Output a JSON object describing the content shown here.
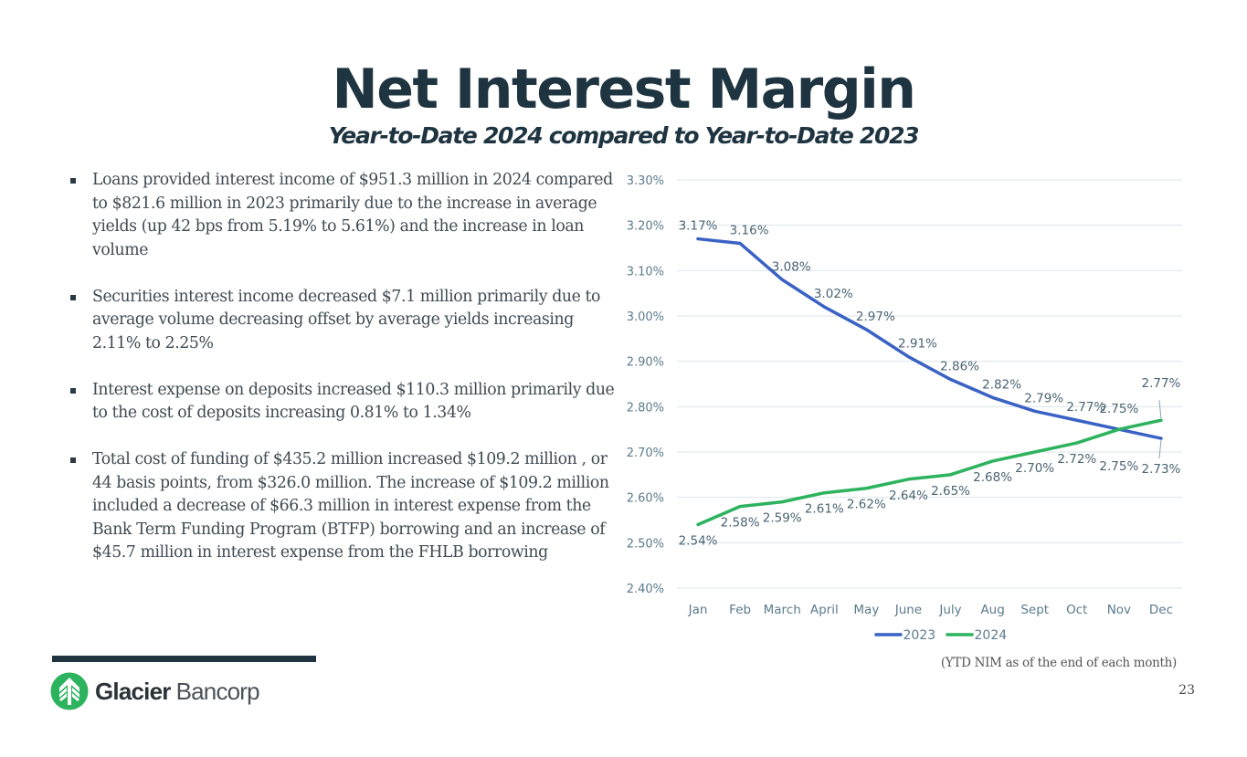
{
  "header": {
    "title": "Net Interest Margin",
    "subtitle": "Year-to-Date 2024 compared to Year-to-Date 2023"
  },
  "bullets": [
    "Loans provided interest income of $951.3 million in 2024 compared to $821.6 million in 2023 primarily due to the increase in average yields (up 42 bps from 5.19% to 5.61%) and the  increase in loan volume",
    "Securities interest income decreased $7.1 million primarily due to average volume decreasing offset by average yields increasing 2.11% to 2.25%",
    "Interest expense on deposits increased $110.3 million primarily due to the cost of deposits increasing 0.81% to 1.34%",
    "Total cost of funding of $435.2 million increased $109.2 million , or 44 basis points, from $326.0 million. The increase of $109.2 million included a decrease of $66.3 million in interest expense from the Bank Term Funding Program (BTFP) borrowing and an increase of $45.7 million in interest expense from the FHLB borrowing"
  ],
  "chart_data": {
    "type": "line",
    "title": "",
    "xlabel": "",
    "ylabel": "",
    "categories": [
      "Jan",
      "Feb",
      "March",
      "April",
      "May",
      "June",
      "July",
      "Aug",
      "Sept",
      "Oct",
      "Nov",
      "Dec"
    ],
    "series": [
      {
        "name": "2023",
        "color": "#3a62c4",
        "values": [
          3.17,
          3.16,
          3.08,
          3.02,
          2.97,
          2.91,
          2.86,
          2.82,
          2.79,
          2.77,
          2.75,
          2.73
        ],
        "labels": [
          "3.17%",
          "3.16%",
          "3.08%",
          "3.02%",
          "2.97%",
          "2.91%",
          "2.86%",
          "2.82%",
          "2.79%",
          "2.77%",
          "2.75%",
          "2.73%"
        ]
      },
      {
        "name": "2024",
        "color": "#2db35e",
        "values": [
          2.54,
          2.58,
          2.59,
          2.61,
          2.62,
          2.64,
          2.65,
          2.68,
          2.7,
          2.72,
          2.75,
          2.77
        ],
        "labels": [
          "2.54%",
          "2.58%",
          "2.59%",
          "2.61%",
          "2.62%",
          "2.64%",
          "2.65%",
          "2.68%",
          "2.70%",
          "2.72%",
          "2.75%",
          "2.77%"
        ]
      }
    ],
    "yticks": [
      "2.40%",
      "2.50%",
      "2.60%",
      "2.70%",
      "2.80%",
      "2.90%",
      "3.00%",
      "3.10%",
      "3.20%",
      "3.30%"
    ],
    "ylim": [
      2.4,
      3.3
    ],
    "grid": true,
    "legend": "bottom-center"
  },
  "footer": {
    "note": "(YTD NIM as of the end of each month)",
    "page_number": "23",
    "brand_strong": "Glacier",
    "brand_light": "Bancorp",
    "brand_color": "#2db35e"
  }
}
